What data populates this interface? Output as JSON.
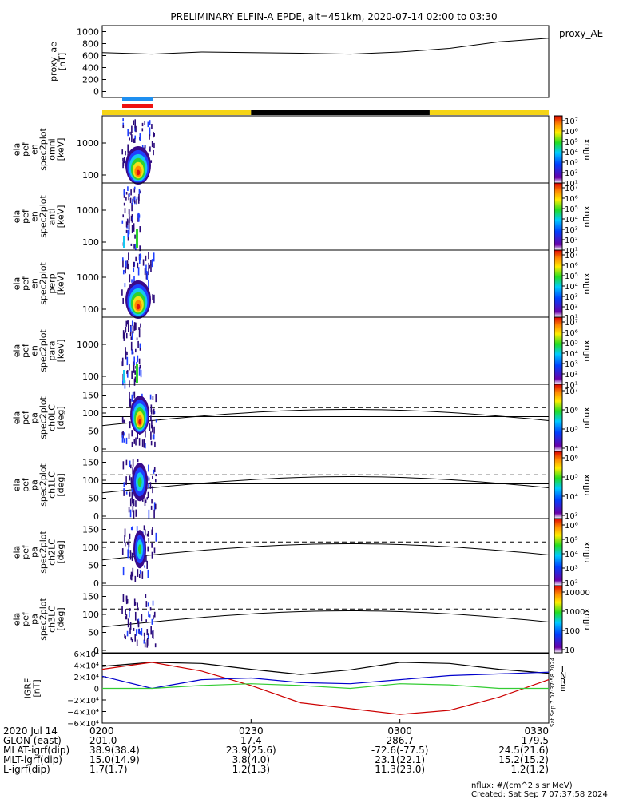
{
  "title": "PRELIMINARY ELFIN-A EPDE, alt=451km, 2020-07-14 02:00 to 03:30",
  "colors": {
    "bar_yellow": "#f5d416",
    "bar_black": "#000000",
    "indicator_blue": "#1e8ff0",
    "indicator_red": "#ee1111",
    "grf_t": "#000000",
    "grf_n": "#cc0000",
    "grf_e": "#33cc33",
    "grf_r": "#0000cc"
  },
  "phase_bar": {
    "segments": [
      {
        "start": "02:00",
        "end": "02:30",
        "state": "yellow"
      },
      {
        "start": "02:30",
        "end": "03:06",
        "state": "black"
      },
      {
        "start": "03:06",
        "end": "03:30",
        "state": "yellow"
      }
    ]
  },
  "chart_data": [
    {
      "type": "line",
      "ylabel": "proxy_ae\n[nT]",
      "legend": "proxy_AE",
      "yticks": [
        "1000",
        "800",
        "600",
        "400",
        "200",
        "0"
      ],
      "ylim": [
        -100,
        1100
      ],
      "x": [
        "02:00",
        "02:10",
        "02:20",
        "02:30",
        "02:40",
        "02:50",
        "03:00",
        "03:10",
        "03:20",
        "03:30"
      ],
      "series": [
        {
          "name": "proxy_AE",
          "values": [
            650,
            625,
            660,
            650,
            640,
            625,
            660,
            720,
            830,
            890
          ]
        }
      ]
    },
    {
      "type": "heatmap",
      "ylabel": "ela\npef\nen\nspec2plot\nomni\n[keV]",
      "yticks": [
        "1000",
        "100"
      ],
      "cbar_label": "nflux",
      "cbar_ticks": [
        "10⁷",
        "10⁶",
        "10⁵",
        "10⁴",
        "10³",
        "10²",
        "10¹"
      ]
    },
    {
      "type": "heatmap",
      "ylabel": "ela\npef\nen\nspec2plot\nanti\n[keV]",
      "yticks": [
        "1000",
        "100"
      ],
      "cbar_label": "nflux",
      "cbar_ticks": [
        "10⁷",
        "10⁶",
        "10⁵",
        "10⁴",
        "10³",
        "10²",
        "10¹"
      ]
    },
    {
      "type": "heatmap",
      "ylabel": "ela\npef\nen\nspec2plot\nperp\n[keV]",
      "yticks": [
        "1000",
        "100"
      ],
      "cbar_label": "nflux",
      "cbar_ticks": [
        "10⁷",
        "10⁶",
        "10⁵",
        "10⁴",
        "10³",
        "10²",
        "10¹"
      ]
    },
    {
      "type": "heatmap",
      "ylabel": "ela\npef\nen\nspec2plot\npara\n[keV]",
      "yticks": [
        "1000",
        "100"
      ],
      "cbar_label": "nflux",
      "cbar_ticks": [
        "10⁷",
        "10⁶",
        "10⁵",
        "10⁴",
        "10³",
        "10²",
        "10¹"
      ]
    },
    {
      "type": "heatmap",
      "ylabel": "ela\npef\npa\nspec2plot\nch0LC\n[deg]",
      "yticks": [
        "150",
        "100",
        "50",
        "0"
      ],
      "cbar_label": "nflux",
      "cbar_ticks": [
        "10⁷",
        "10⁶",
        "10⁵",
        "10⁴"
      ]
    },
    {
      "type": "heatmap",
      "ylabel": "ela\npef\npa\nspec2plot\nch1LC\n[deg]",
      "yticks": [
        "150",
        "100",
        "50",
        "0"
      ],
      "cbar_label": "nflux",
      "cbar_ticks": [
        "10⁶",
        "10⁵",
        "10⁴",
        "10³"
      ]
    },
    {
      "type": "heatmap",
      "ylabel": "ela\npef\npa\nspec2plot\nch2LC\n[deg]",
      "yticks": [
        "150",
        "100",
        "50",
        "0"
      ],
      "cbar_label": "nflux",
      "cbar_ticks": [
        "10⁶",
        "10⁵",
        "10⁴",
        "10³",
        "10²"
      ]
    },
    {
      "type": "heatmap",
      "ylabel": "ela\npef\npa\nspec2plot\nch3LC\n[deg]",
      "yticks": [
        "150",
        "100",
        "50",
        "0"
      ],
      "cbar_label": "nflux",
      "cbar_ticks": [
        "10000",
        "1000",
        "100",
        "10"
      ]
    },
    {
      "type": "line",
      "ylabel": "IGRF\n[nT]",
      "yticks": [
        "6×10⁴",
        "4×10⁴",
        "2×10⁴",
        "0",
        "−2×10⁴",
        "−4×10⁴",
        "−6×10⁴"
      ],
      "ylim": [
        -60000,
        60000
      ],
      "legend_labels": [
        "T",
        "N",
        "R",
        "E"
      ],
      "x": [
        "02:00",
        "02:10",
        "02:20",
        "02:30",
        "02:40",
        "02:50",
        "03:00",
        "03:10",
        "03:20",
        "03:30"
      ],
      "series": [
        {
          "name": "T",
          "values": [
            38000,
            45000,
            43000,
            33000,
            24000,
            32000,
            45000,
            43000,
            33000,
            26000
          ]
        },
        {
          "name": "N",
          "values": [
            33000,
            45000,
            30000,
            5000,
            -25000,
            -35000,
            -45000,
            -38000,
            -15000,
            15000
          ]
        },
        {
          "name": "R",
          "values": [
            21000,
            0,
            15000,
            18000,
            10000,
            8000,
            15000,
            22000,
            25000,
            28000
          ]
        },
        {
          "name": "E",
          "values": [
            0,
            0,
            5000,
            8000,
            5000,
            0,
            8000,
            6000,
            0,
            0
          ]
        }
      ]
    }
  ],
  "time_axis": {
    "ticks": [
      "0200",
      "0230",
      "0300",
      "0330"
    ],
    "rows": [
      {
        "label": "2020 Jul 14",
        "values": [
          "0200",
          "0230",
          "0300",
          "0330"
        ]
      },
      {
        "label": "GLON (east)",
        "values": [
          "201.0",
          "17.4",
          "286.7",
          "179.5"
        ]
      },
      {
        "label": "MLAT-igrf(dip)",
        "values": [
          "38.9(38.4)",
          "23.9(25.6)",
          "-72.6(-77.5)",
          "24.5(21.6)"
        ]
      },
      {
        "label": "MLT-igrf(dip)",
        "values": [
          "15.0(14.9)",
          "3.8(4.0)",
          "23.1(22.1)",
          "15.2(15.2)"
        ]
      },
      {
        "label": "L-igrf(dip)",
        "values": [
          "1.7(1.7)",
          "1.2(1.3)",
          "11.3(23.0)",
          "1.2(1.2)"
        ]
      }
    ]
  },
  "footer": {
    "units": "nflux: #/(cm^2 s sr MeV)",
    "created": "Created: Sat Sep  7 07:37:58 2024",
    "stamp": "Sat Sep  7 07:37:58 2024"
  }
}
